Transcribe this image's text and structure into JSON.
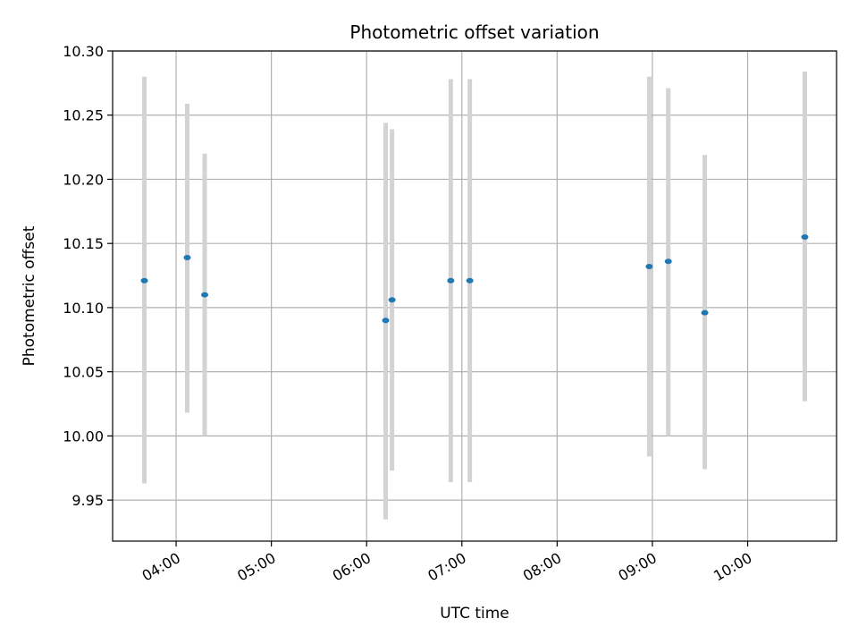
{
  "chart_data": {
    "type": "scatter",
    "title": "Photometric offset variation",
    "xlabel": "UTC time",
    "ylabel": "Photometric offset",
    "xlim": [
      "03:20",
      "10:56"
    ],
    "ylim": [
      9.918,
      10.3
    ],
    "grid": true,
    "x_ticks": [
      "04:00",
      "05:00",
      "06:00",
      "07:00",
      "08:00",
      "09:00",
      "10:00"
    ],
    "y_ticks": [
      "9.95",
      "10.00",
      "10.05",
      "10.10",
      "10.15",
      "10.20",
      "10.25",
      "10.30"
    ],
    "colors": {
      "point": "#1f77b4",
      "errorbar": "#d3d3d3",
      "grid": "#b0b0b0"
    },
    "points": [
      {
        "x": "03:40",
        "y": 10.121,
        "ylow": 9.963,
        "yhigh": 10.28
      },
      {
        "x": "04:07",
        "y": 10.139,
        "ylow": 10.018,
        "yhigh": 10.259
      },
      {
        "x": "04:18",
        "y": 10.11,
        "ylow": 10.0,
        "yhigh": 10.22
      },
      {
        "x": "06:12",
        "y": 10.09,
        "ylow": 9.935,
        "yhigh": 10.244
      },
      {
        "x": "06:16",
        "y": 10.106,
        "ylow": 9.973,
        "yhigh": 10.239
      },
      {
        "x": "06:53",
        "y": 10.121,
        "ylow": 9.964,
        "yhigh": 10.278
      },
      {
        "x": "07:05",
        "y": 10.121,
        "ylow": 9.964,
        "yhigh": 10.278
      },
      {
        "x": "08:58",
        "y": 10.132,
        "ylow": 9.984,
        "yhigh": 10.28
      },
      {
        "x": "09:10",
        "y": 10.136,
        "ylow": 10.0,
        "yhigh": 10.271
      },
      {
        "x": "09:33",
        "y": 10.096,
        "ylow": 9.974,
        "yhigh": 10.219
      },
      {
        "x": "10:36",
        "y": 10.155,
        "ylow": 10.027,
        "yhigh": 10.284
      }
    ]
  }
}
